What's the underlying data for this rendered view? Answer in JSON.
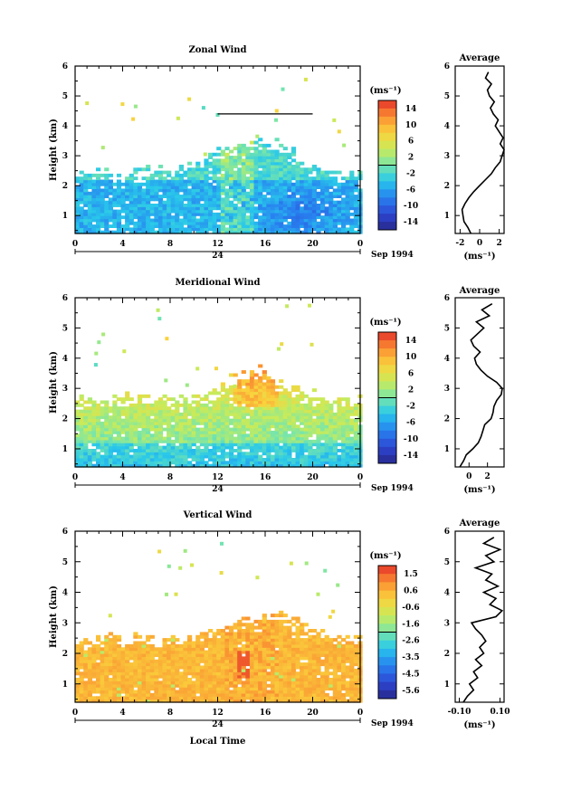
{
  "chart_data": [
    {
      "type": "heatmap",
      "title": "Zonal Wind",
      "xlabel": "",
      "ylabel": "Height (km)",
      "xlim": [
        0,
        24
      ],
      "ylim": [
        0.4,
        6
      ],
      "x_ticks": [
        "0",
        "4",
        "8",
        "12",
        "16",
        "20",
        "0"
      ],
      "y_ticks": [
        "1",
        "2",
        "3",
        "4",
        "5",
        "6"
      ],
      "day_label": "24",
      "date_label": "Sep 1994",
      "colorbar": {
        "unit": "(ms⁻¹)",
        "labels": [
          "14",
          "10",
          "6",
          "2",
          "-2",
          "-6",
          "-10",
          "-14"
        ],
        "min": -16,
        "max": 16
      },
      "profile": {
        "title": "Average",
        "xlabel": "(ms⁻¹)",
        "x_ticks": [
          "-2",
          "0",
          "2"
        ],
        "xlim": [
          -2.5,
          2.5
        ],
        "y": [
          0.4,
          0.6,
          0.8,
          1.0,
          1.2,
          1.4,
          1.6,
          1.8,
          2.0,
          2.2,
          2.4,
          2.6,
          2.8,
          3.0,
          3.2,
          3.4,
          3.6,
          3.8,
          4.0,
          4.2,
          4.4,
          4.6,
          4.8,
          5.0,
          5.2,
          5.4,
          5.6,
          5.8
        ],
        "values": [
          -0.9,
          -1.2,
          -1.6,
          -1.7,
          -1.8,
          -1.5,
          -1.1,
          -0.6,
          0.0,
          0.6,
          1.2,
          1.6,
          2.1,
          2.3,
          2.5,
          2.1,
          2.4,
          2.0,
          1.6,
          1.9,
          1.4,
          1.1,
          1.5,
          1.0,
          0.8,
          1.2,
          0.6,
          0.9
        ]
      },
      "contours": [
        {
          "from": 12,
          "to": 20,
          "at": 4.4
        }
      ]
    },
    {
      "type": "heatmap",
      "title": "Meridional Wind",
      "xlabel": "",
      "ylabel": "Height (km)",
      "xlim": [
        0,
        24
      ],
      "ylim": [
        0.4,
        6
      ],
      "x_ticks": [
        "0",
        "4",
        "8",
        "12",
        "16",
        "20",
        "0"
      ],
      "y_ticks": [
        "1",
        "2",
        "3",
        "4",
        "5",
        "6"
      ],
      "day_label": "24",
      "date_label": "Sep 1994",
      "colorbar": {
        "unit": "(ms⁻¹)",
        "labels": [
          "14",
          "10",
          "6",
          "2",
          "-2",
          "-6",
          "-10",
          "-14"
        ],
        "min": -16,
        "max": 16
      },
      "profile": {
        "title": "Average",
        "xlabel": "(ms⁻¹)",
        "x_ticks": [
          "0",
          "2"
        ],
        "xlim": [
          -1.5,
          3.8
        ],
        "y": [
          0.4,
          0.6,
          0.8,
          1.0,
          1.2,
          1.4,
          1.6,
          1.8,
          2.0,
          2.2,
          2.4,
          2.6,
          2.8,
          3.0,
          3.2,
          3.4,
          3.6,
          3.8,
          4.0,
          4.2,
          4.4,
          4.6,
          4.8,
          5.0,
          5.2,
          5.4,
          5.6,
          5.8
        ],
        "values": [
          -1.0,
          -0.6,
          -0.3,
          0.4,
          1.0,
          1.3,
          1.5,
          1.7,
          2.4,
          2.6,
          2.7,
          3.0,
          3.5,
          3.6,
          3.0,
          2.0,
          1.3,
          0.8,
          0.6,
          1.2,
          0.5,
          0.2,
          0.9,
          1.6,
          0.8,
          2.2,
          1.4,
          2.5
        ]
      }
    },
    {
      "type": "heatmap",
      "title": "Vertical Wind",
      "xlabel": "Local Time",
      "ylabel": "Height (km)",
      "xlim": [
        0,
        24
      ],
      "ylim": [
        0.4,
        6
      ],
      "x_ticks": [
        "0",
        "4",
        "8",
        "12",
        "16",
        "20",
        "0"
      ],
      "y_ticks": [
        "1",
        "2",
        "3",
        "4",
        "5",
        "6"
      ],
      "day_label": "24",
      "date_label": "Sep 1994",
      "colorbar": {
        "unit": "(ms⁻¹)",
        "labels": [
          "1.5",
          "0.6",
          "-0.6",
          "-1.6",
          "-2.6",
          "-3.5",
          "-4.5",
          "-5.6"
        ],
        "min": -6.0,
        "max": 2.0
      },
      "profile": {
        "title": "Average",
        "xlabel": "(ms⁻¹)",
        "x_ticks": [
          "-0.10",
          "0.10"
        ],
        "xlim": [
          -0.12,
          0.12
        ],
        "y": [
          0.4,
          0.6,
          0.8,
          1.0,
          1.2,
          1.4,
          1.6,
          1.8,
          2.0,
          2.2,
          2.4,
          2.6,
          2.8,
          3.0,
          3.2,
          3.4,
          3.6,
          3.8,
          4.0,
          4.2,
          4.4,
          4.6,
          4.8,
          5.0,
          5.2,
          5.4,
          5.6,
          5.8
        ],
        "values": [
          -0.08,
          -0.06,
          -0.03,
          -0.05,
          -0.01,
          -0.03,
          0.01,
          -0.02,
          0.02,
          0.0,
          0.03,
          0.01,
          -0.02,
          -0.04,
          0.08,
          0.11,
          0.05,
          0.08,
          0.02,
          0.09,
          0.03,
          0.06,
          -0.02,
          0.07,
          0.03,
          0.1,
          0.02,
          0.07
        ]
      }
    }
  ]
}
